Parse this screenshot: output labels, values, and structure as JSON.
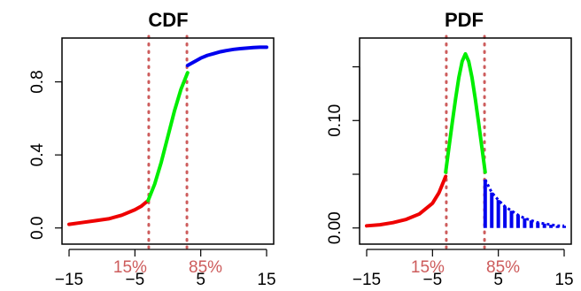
{
  "colors": {
    "lower_tail": "#ee0000",
    "middle": "#00ee00",
    "upper_tail": "#0000ee",
    "quantile_line": "#cd5c5c",
    "axis": "#000000"
  },
  "chart_data": [
    {
      "type": "line",
      "title": "CDF",
      "xlabel": "",
      "ylabel": "",
      "xlim": [
        -15,
        15
      ],
      "ylim": [
        0,
        1
      ],
      "x_ticks": [
        -15,
        -5,
        5,
        15
      ],
      "x_tick_labels": [
        "−15",
        "−5",
        "5",
        "15"
      ],
      "y_ticks": [
        0.0,
        0.4,
        0.8
      ],
      "y_tick_labels": [
        "0.0",
        "0.4",
        "0.8"
      ],
      "grid": false,
      "quantile_lines": [
        {
          "label": "15%",
          "x": -2.9
        },
        {
          "label": "85%",
          "x": 2.9
        }
      ],
      "series": [
        {
          "segment": "lower_tail",
          "x": [
            -15,
            -13,
            -11,
            -9,
            -7,
            -5,
            -4,
            -3
          ],
          "y": [
            0.02,
            0.03,
            0.04,
            0.05,
            0.07,
            0.1,
            0.12,
            0.15
          ]
        },
        {
          "segment": "middle",
          "x": [
            -3,
            -2,
            -1,
            0,
            1,
            2,
            3
          ],
          "y": [
            0.15,
            0.24,
            0.36,
            0.5,
            0.64,
            0.76,
            0.85
          ]
        },
        {
          "segment": "upper_tail",
          "x": [
            3,
            4,
            5,
            6,
            7,
            8,
            9,
            10,
            11,
            12,
            13,
            14,
            15
          ],
          "y": [
            0.89,
            0.91,
            0.93,
            0.945,
            0.955,
            0.965,
            0.972,
            0.978,
            0.982,
            0.985,
            0.988,
            0.99,
            0.99
          ]
        }
      ]
    },
    {
      "type": "line",
      "title": "PDF",
      "xlabel": "",
      "ylabel": "",
      "xlim": [
        -15,
        15
      ],
      "ylim": [
        0,
        0.17
      ],
      "x_ticks": [
        -15,
        -5,
        5,
        15
      ],
      "x_tick_labels": [
        "−15",
        "−5",
        "5",
        "15"
      ],
      "y_ticks": [
        0.0,
        0.05,
        0.1,
        0.15
      ],
      "y_tick_labels": [
        "0.00",
        "",
        "0.10",
        ""
      ],
      "grid": false,
      "quantile_lines": [
        {
          "label": "15%",
          "x": -2.9
        },
        {
          "label": "85%",
          "x": 2.9
        }
      ],
      "series": [
        {
          "segment": "lower_tail",
          "x": [
            -15,
            -13,
            -11,
            -9,
            -7,
            -5,
            -4,
            -3
          ],
          "y": [
            0.002,
            0.003,
            0.005,
            0.008,
            0.013,
            0.023,
            0.033,
            0.048
          ]
        },
        {
          "segment": "middle",
          "x": [
            -3,
            -2.5,
            -2,
            -1.5,
            -1,
            -0.5,
            0,
            0.5,
            1,
            1.5,
            2,
            2.5,
            3
          ],
          "y": [
            0.052,
            0.075,
            0.098,
            0.12,
            0.14,
            0.155,
            0.162,
            0.155,
            0.14,
            0.12,
            0.098,
            0.075,
            0.052
          ]
        },
        {
          "segment": "upper_tail",
          "style": "spikes",
          "x": [
            3,
            4,
            5,
            6,
            7,
            8,
            9,
            10,
            11,
            12,
            13,
            14,
            15
          ],
          "y": [
            0.045,
            0.033,
            0.026,
            0.02,
            0.016,
            0.012,
            0.009,
            0.007,
            0.005,
            0.004,
            0.003,
            0.002,
            0.002
          ]
        }
      ]
    }
  ]
}
